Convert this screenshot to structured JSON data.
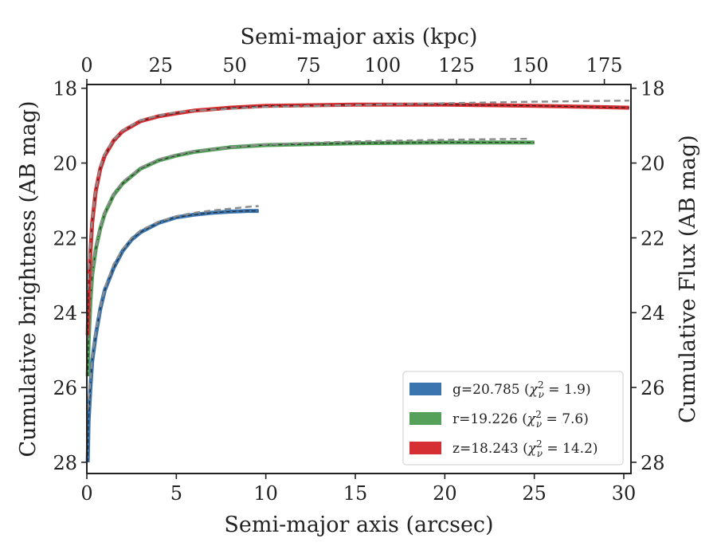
{
  "chart_data": {
    "type": "line",
    "title": "",
    "xlabel": "Semi-major axis (arcsec)",
    "x2label": "Semi-major axis (kpc)",
    "ylabel": "Cumulative brightness (AB mag)",
    "y2label": "Cumulative Flux (AB mag)",
    "xlim": [
      0,
      30.4
    ],
    "x2lim": [
      0,
      184
    ],
    "ylim": [
      28.3,
      17.9
    ],
    "y_inverted": true,
    "xticks": [
      0,
      5,
      10,
      15,
      20,
      25,
      30
    ],
    "x2ticks": [
      0,
      25,
      50,
      75,
      100,
      125,
      150,
      175
    ],
    "yticks": [
      18,
      20,
      22,
      24,
      26,
      28
    ],
    "grid": false,
    "legend_position": "lower-right",
    "series": [
      {
        "name": "g=20.785 (χ²ν = 1.9)",
        "legend_main": "g=20.785 (",
        "legend_chi": "χ",
        "legend_sup": "2",
        "legend_sub": "ν",
        "legend_value": " = 1.9)",
        "color": "#3b75af",
        "x": [
          0.05,
          0.1,
          0.2,
          0.3,
          0.5,
          0.75,
          1.0,
          1.5,
          2.0,
          2.5,
          3.0,
          4.0,
          5.0,
          6.0,
          7.0,
          8.0,
          9.0,
          9.6
        ],
        "y": [
          28.0,
          26.9,
          26.0,
          25.3,
          24.6,
          23.9,
          23.4,
          22.8,
          22.35,
          22.05,
          21.85,
          21.6,
          21.45,
          21.38,
          21.33,
          21.3,
          21.28,
          21.28
        ],
        "model_x": [
          0.05,
          0.1,
          0.2,
          0.3,
          0.5,
          0.75,
          1.0,
          1.5,
          2.0,
          2.5,
          3.0,
          4.0,
          5.0,
          6.0,
          7.0,
          8.0,
          9.0,
          9.6
        ],
        "model_y": [
          26.6,
          26.3,
          25.8,
          25.2,
          24.5,
          23.85,
          23.35,
          22.7,
          22.3,
          22.0,
          21.8,
          21.57,
          21.42,
          21.33,
          21.27,
          21.22,
          21.17,
          21.15
        ]
      },
      {
        "name": "r=19.226 (χ²ν = 7.6)",
        "legend_main": "r=19.226 (",
        "legend_chi": "χ",
        "legend_sup": "2",
        "legend_sub": "ν",
        "legend_value": " = 7.6)",
        "color": "#55a15a",
        "x": [
          0.05,
          0.1,
          0.2,
          0.3,
          0.5,
          0.75,
          1.0,
          1.5,
          2.0,
          3.0,
          4.0,
          5.0,
          6.0,
          8.0,
          10.0,
          15.0,
          20.0,
          25.0
        ],
        "y": [
          25.7,
          24.8,
          23.7,
          23.0,
          22.3,
          21.75,
          21.35,
          20.85,
          20.55,
          20.15,
          19.93,
          19.8,
          19.7,
          19.58,
          19.52,
          19.47,
          19.45,
          19.45
        ],
        "model_x": [
          0.05,
          0.1,
          0.2,
          0.3,
          0.5,
          0.75,
          1.0,
          1.5,
          2.0,
          3.0,
          4.0,
          5.0,
          6.0,
          8.0,
          10.0,
          15.0,
          20.0,
          24.8
        ],
        "model_y": [
          24.7,
          24.3,
          23.5,
          22.9,
          22.25,
          21.7,
          21.3,
          20.82,
          20.5,
          20.12,
          19.9,
          19.77,
          19.68,
          19.58,
          19.5,
          19.42,
          19.38,
          19.35
        ]
      },
      {
        "name": "z=18.243 (χ²ν = 14.2)",
        "legend_main": "z=18.243 (",
        "legend_chi": "χ",
        "legend_sup": "2",
        "legend_sub": "ν",
        "legend_value": " = 14.2)",
        "color": "#d62f33",
        "x": [
          0.05,
          0.1,
          0.2,
          0.3,
          0.5,
          0.75,
          1.0,
          1.5,
          2.0,
          3.0,
          4.0,
          5.0,
          6.0,
          8.0,
          10.0,
          15.0,
          20.0,
          25.0,
          30.3
        ],
        "y": [
          24.6,
          23.5,
          22.4,
          21.6,
          20.75,
          20.15,
          19.8,
          19.4,
          19.15,
          18.88,
          18.75,
          18.67,
          18.6,
          18.52,
          18.47,
          18.44,
          18.44,
          18.47,
          18.52
        ],
        "model_x": [
          0.05,
          0.1,
          0.2,
          0.3,
          0.5,
          0.75,
          1.0,
          1.5,
          2.0,
          3.0,
          4.0,
          5.0,
          6.0,
          8.0,
          10.0,
          15.0,
          20.0,
          25.0,
          30.3
        ],
        "model_y": [
          23.4,
          22.9,
          22.2,
          21.5,
          20.7,
          20.1,
          19.75,
          19.37,
          19.13,
          18.86,
          18.73,
          18.64,
          18.6,
          18.55,
          18.5,
          18.45,
          18.4,
          18.36,
          18.33
        ]
      }
    ]
  }
}
